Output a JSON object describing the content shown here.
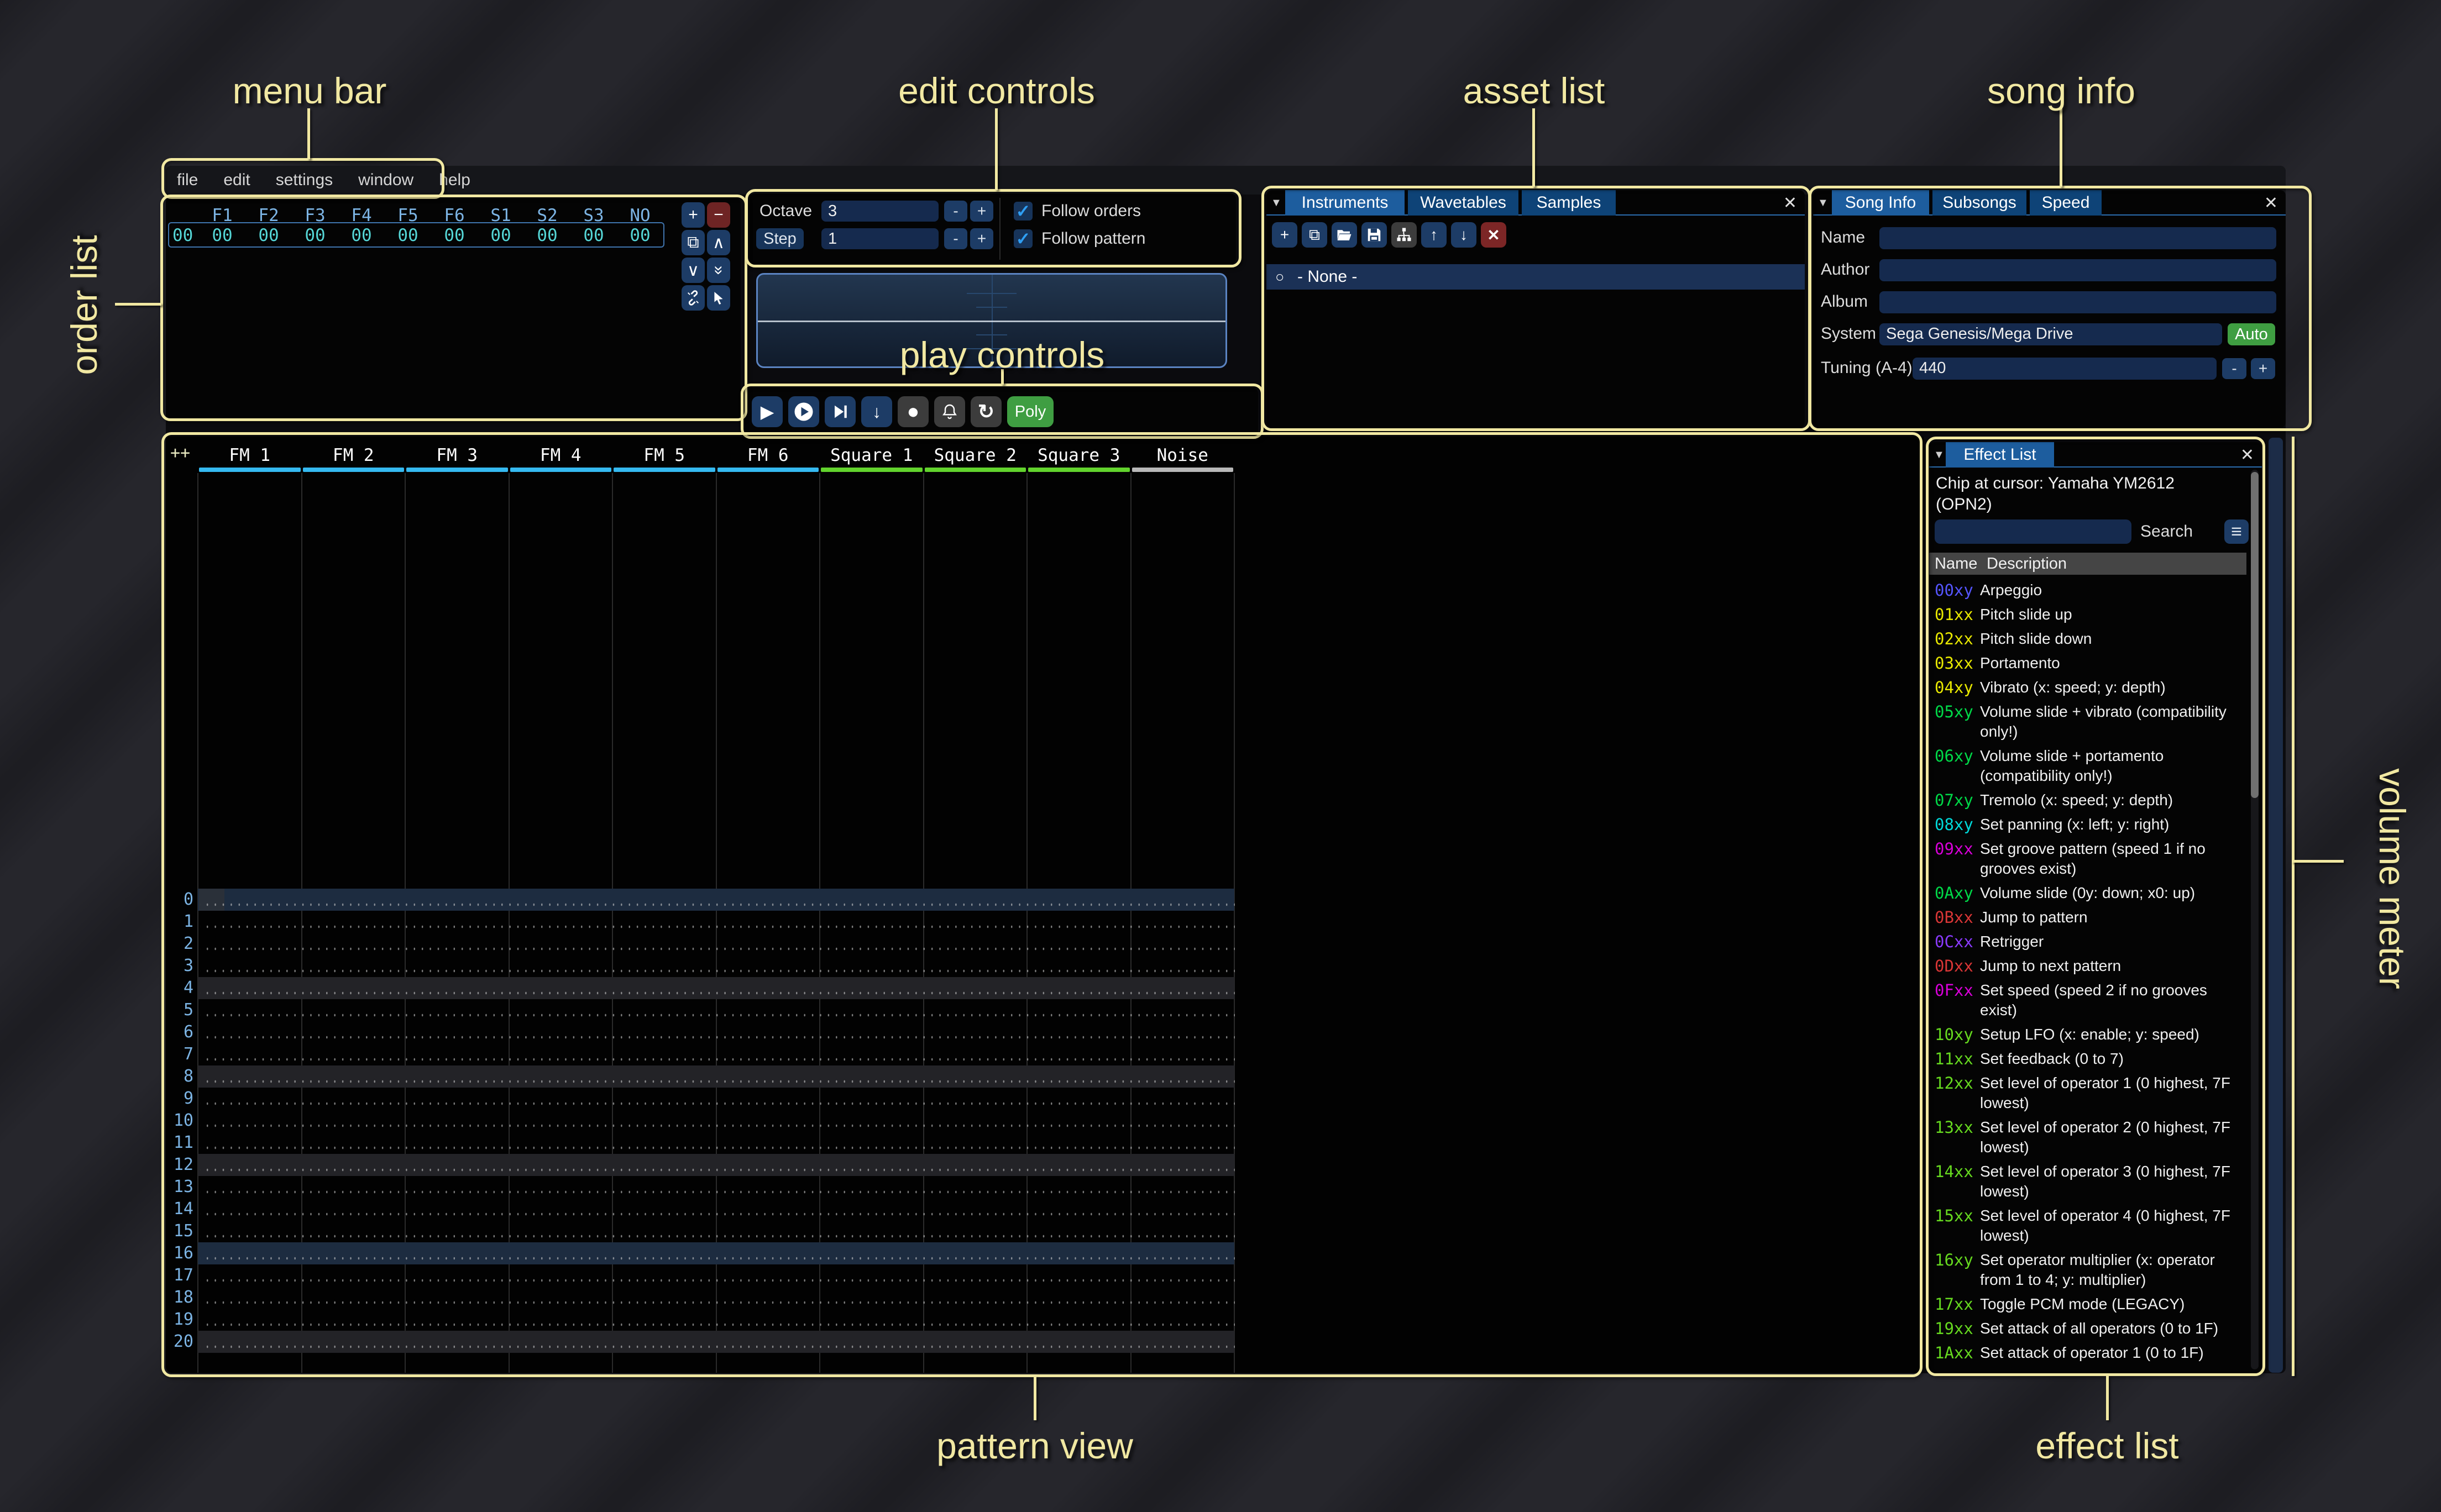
{
  "menu": {
    "items": [
      "file",
      "edit",
      "settings",
      "window",
      "help"
    ]
  },
  "order_list": {
    "headers": [
      "F1",
      "F2",
      "F3",
      "F4",
      "F5",
      "F6",
      "S1",
      "S2",
      "S3",
      "NO"
    ],
    "row_index": "00",
    "row_values": [
      "00",
      "00",
      "00",
      "00",
      "00",
      "00",
      "00",
      "00",
      "00",
      "00"
    ]
  },
  "edit_controls": {
    "octave_label": "Octave",
    "octave_value": "3",
    "step_label": "Step",
    "step_value": "1",
    "minus_label": "-",
    "plus_label": "+",
    "follow_orders": "Follow orders",
    "follow_pattern": "Follow pattern"
  },
  "play_controls": {
    "poly_label": "Poly"
  },
  "asset_list": {
    "tabs": [
      "Instruments",
      "Wavetables",
      "Samples"
    ],
    "active_tab": "Instruments",
    "selected_item": "- None -"
  },
  "song_info": {
    "tabs": [
      "Song Info",
      "Subsongs",
      "Speed"
    ],
    "active_tab": "Song Info",
    "name_label": "Name",
    "name_value": "",
    "author_label": "Author",
    "author_value": "",
    "album_label": "Album",
    "album_value": "",
    "system_label": "System",
    "system_value": "Sega Genesis/Mega Drive",
    "auto_label": "Auto",
    "tuning_label": "Tuning (A-4)",
    "tuning_value": "440"
  },
  "pattern_view": {
    "corner": "++",
    "channels": [
      {
        "name": "FM 1",
        "color": "#35b9f0"
      },
      {
        "name": "FM 2",
        "color": "#35b9f0"
      },
      {
        "name": "FM 3",
        "color": "#35b9f0"
      },
      {
        "name": "FM 4",
        "color": "#35b9f0"
      },
      {
        "name": "FM 5",
        "color": "#35b9f0"
      },
      {
        "name": "FM 6",
        "color": "#35b9f0"
      },
      {
        "name": "Square 1",
        "color": "#62d32d"
      },
      {
        "name": "Square 2",
        "color": "#62d32d"
      },
      {
        "name": "Square 3",
        "color": "#62d32d"
      },
      {
        "name": "Noise",
        "color": "#b8b8b8"
      }
    ],
    "rows": [
      "0",
      "1",
      "2",
      "3",
      "4",
      "5",
      "6",
      "7",
      "8",
      "9",
      "10",
      "11",
      "12",
      "13",
      "14",
      "15",
      "16",
      "17",
      "18",
      "19",
      "20"
    ]
  },
  "effect_list": {
    "tab": "Effect List",
    "chip_text": "Chip at cursor: Yamaha YM2612 (OPN2)",
    "search_label": "Search",
    "search_value": "",
    "columns": [
      "Name",
      "Description"
    ],
    "effect_colors": {
      "blue": "#5555ff",
      "yellow": "#e8e800",
      "green": "#00d948",
      "cyan": "#00d9d9",
      "magenta": "#d900d9",
      "red": "#d93636",
      "violet": "#8a3aff",
      "lawn": "#66d91f"
    },
    "effects": [
      {
        "code": "00xy",
        "color": "blue",
        "desc": "Arpeggio"
      },
      {
        "code": "01xx",
        "color": "yellow",
        "desc": "Pitch slide up"
      },
      {
        "code": "02xx",
        "color": "yellow",
        "desc": "Pitch slide down"
      },
      {
        "code": "03xx",
        "color": "yellow",
        "desc": "Portamento"
      },
      {
        "code": "04xy",
        "color": "yellow",
        "desc": "Vibrato (x: speed; y: depth)"
      },
      {
        "code": "05xy",
        "color": "green",
        "desc": "Volume slide + vibrato (compatibility only!)"
      },
      {
        "code": "06xy",
        "color": "green",
        "desc": "Volume slide + portamento (compatibility only!)"
      },
      {
        "code": "07xy",
        "color": "green",
        "desc": "Tremolo (x: speed; y: depth)"
      },
      {
        "code": "08xy",
        "color": "cyan",
        "desc": "Set panning (x: left; y: right)"
      },
      {
        "code": "09xx",
        "color": "magenta",
        "desc": "Set groove pattern (speed 1 if no grooves exist)"
      },
      {
        "code": "0Axy",
        "color": "green",
        "desc": "Volume slide (0y: down; x0: up)"
      },
      {
        "code": "0Bxx",
        "color": "red",
        "desc": "Jump to pattern"
      },
      {
        "code": "0Cxx",
        "color": "violet",
        "desc": "Retrigger"
      },
      {
        "code": "0Dxx",
        "color": "red",
        "desc": "Jump to next pattern"
      },
      {
        "code": "0Fxx",
        "color": "magenta",
        "desc": "Set speed (speed 2 if no grooves exist)"
      },
      {
        "code": "10xy",
        "color": "lawn",
        "desc": "Setup LFO (x: enable; y: speed)"
      },
      {
        "code": "11xx",
        "color": "lawn",
        "desc": "Set feedback (0 to 7)"
      },
      {
        "code": "12xx",
        "color": "lawn",
        "desc": "Set level of operator 1 (0 highest, 7F lowest)"
      },
      {
        "code": "13xx",
        "color": "lawn",
        "desc": "Set level of operator 2 (0 highest, 7F lowest)"
      },
      {
        "code": "14xx",
        "color": "lawn",
        "desc": "Set level of operator 3 (0 highest, 7F lowest)"
      },
      {
        "code": "15xx",
        "color": "lawn",
        "desc": "Set level of operator 4 (0 highest, 7F lowest)"
      },
      {
        "code": "16xy",
        "color": "lawn",
        "desc": "Set operator multiplier (x: operator from 1 to 4; y: multiplier)"
      },
      {
        "code": "17xx",
        "color": "lawn",
        "desc": "Toggle PCM mode (LEGACY)"
      },
      {
        "code": "19xx",
        "color": "lawn",
        "desc": "Set attack of all operators (0 to 1F)"
      },
      {
        "code": "1Axx",
        "color": "lawn",
        "desc": "Set attack of operator 1 (0 to 1F)"
      }
    ]
  },
  "icons": {
    "close": "✕",
    "collapse": "▼",
    "hamburger": "≡",
    "radio": "○",
    "plus": "+",
    "minus": "−",
    "check": "✓",
    "play": "▶",
    "record": "●",
    "repeat": "↻",
    "up": "↑",
    "down": "↓",
    "chevron_up": "∧",
    "chevron_down": "∨",
    "copy": "⧉"
  },
  "annotations": {
    "menu_bar": "menu bar",
    "edit_controls": "edit controls",
    "asset_list": "asset list",
    "song_info": "song info",
    "order_list": "order list",
    "play_controls": "play controls",
    "pattern_view": "pattern view",
    "volume_meter": "volume meter",
    "effect_list": "effect list"
  },
  "colors": {
    "annotation": "#f1e8a2",
    "tab_active": "#1d5d9e",
    "tab_inactive": "#0e4377",
    "input_bg": "#152a4e",
    "button_blue": "#1d3c66",
    "button_red": "#6e2424",
    "button_green": "#3f9e42",
    "order_value": "#55d6d6",
    "row_number": "#7cb4e4",
    "fm_channel": "#35b9f0",
    "square_channel": "#62d32d",
    "noise_channel": "#b8b8b8",
    "volume_meter": "#1c2c47"
  }
}
